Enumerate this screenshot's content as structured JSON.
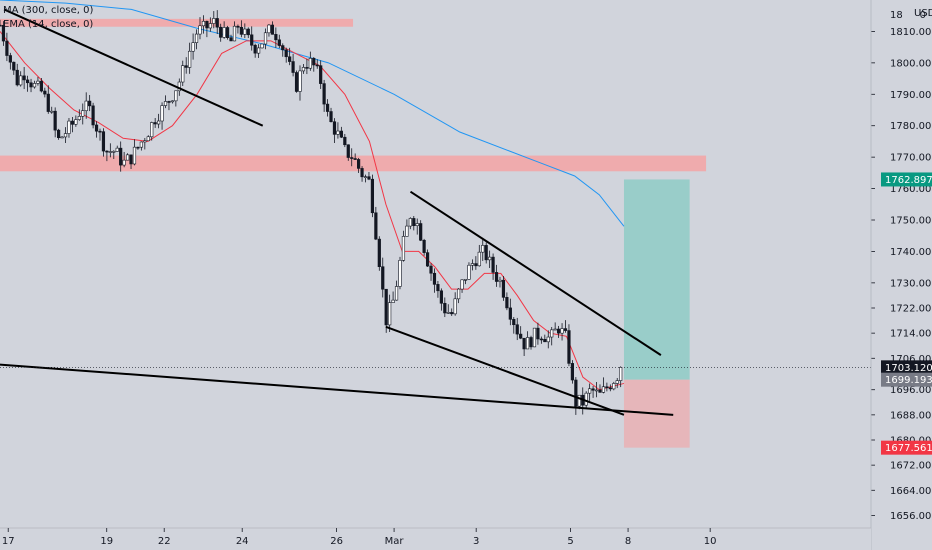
{
  "legend": {
    "ma_label": "MA (300, close, 0)",
    "ema_label": "EMA (14, close, 0)"
  },
  "currency": "USD",
  "colors": {
    "background": "#d1d4dc",
    "bull": "#ffffff",
    "bear": "#131722",
    "ema": "#f23645",
    "ma": "#2196f3",
    "zone": "#f4a3a5",
    "target": "#8fcbc5",
    "stop": "#e8b2b6",
    "axis_text": "#131722",
    "badge_green": "#089981",
    "badge_black": "#131722",
    "badge_grey": "#787b86",
    "badge_red": "#f23645"
  },
  "chart_data": {
    "type": "candlestick",
    "symbol_unit": "USD",
    "ylim": [
      1652,
      1820
    ],
    "xlim": [
      0,
      100
    ],
    "yticks": [
      1810,
      1800,
      1790,
      1780,
      1770,
      1760,
      1750,
      1740,
      1730,
      1722,
      1714,
      1706,
      1696,
      1688,
      1680,
      1672,
      1664,
      1656
    ],
    "ytick_labels": [
      "1810.000",
      "1800.000",
      "1790.000",
      "1780.000",
      "1770.000",
      "1760.000",
      "1750.000",
      "1740.000",
      "1730.000",
      "1722.000",
      "1714.000",
      "1706.000",
      "1696.000",
      "1688.000",
      "1680.000",
      "1672.000",
      "1664.000",
      "1656.000"
    ],
    "top_partial_labels": [
      "18",
      "0"
    ],
    "xticks": [
      {
        "label": "17",
        "x": 1
      },
      {
        "label": "19",
        "x": 13
      },
      {
        "label": "22",
        "x": 20
      },
      {
        "label": "24",
        "x": 29.5
      },
      {
        "label": "26",
        "x": 41
      },
      {
        "label": "Mar",
        "x": 48
      },
      {
        "label": "3",
        "x": 58
      },
      {
        "label": "5",
        "x": 69.5
      },
      {
        "label": "8",
        "x": 76.5
      },
      {
        "label": "10",
        "x": 86.5
      }
    ],
    "close_path": [
      [
        0,
        1812
      ],
      [
        1,
        1803
      ],
      [
        2,
        1794
      ],
      [
        3,
        1797
      ],
      [
        4,
        1793
      ],
      [
        5,
        1791
      ],
      [
        6,
        1786
      ],
      [
        7,
        1775
      ],
      [
        8,
        1778
      ],
      [
        9,
        1781
      ],
      [
        10,
        1786
      ],
      [
        11,
        1785
      ],
      [
        12,
        1778
      ],
      [
        13,
        1772
      ],
      [
        14,
        1772
      ],
      [
        15,
        1768
      ],
      [
        16,
        1770
      ],
      [
        17,
        1774
      ],
      [
        18,
        1778
      ],
      [
        19,
        1783
      ],
      [
        20,
        1786
      ],
      [
        21,
        1790
      ],
      [
        22,
        1795
      ],
      [
        23,
        1803
      ],
      [
        24,
        1810
      ],
      [
        25,
        1811
      ],
      [
        26,
        1813
      ],
      [
        27,
        1810
      ],
      [
        28,
        1806
      ],
      [
        29,
        1812
      ],
      [
        30,
        1808
      ],
      [
        31,
        1805
      ],
      [
        32,
        1807
      ],
      [
        33,
        1811
      ],
      [
        34,
        1808
      ],
      [
        35,
        1801
      ],
      [
        36,
        1792
      ],
      [
        37,
        1800
      ],
      [
        38,
        1800
      ],
      [
        39,
        1795
      ],
      [
        40,
        1782
      ],
      [
        41,
        1778
      ],
      [
        42,
        1772
      ],
      [
        43,
        1770
      ],
      [
        44,
        1765
      ],
      [
        45,
        1762
      ],
      [
        46,
        1742
      ],
      [
        47,
        1718
      ],
      [
        48,
        1725
      ],
      [
        49,
        1741
      ],
      [
        50,
        1752
      ],
      [
        51,
        1748
      ],
      [
        52,
        1738
      ],
      [
        53,
        1729
      ],
      [
        54,
        1722
      ],
      [
        55,
        1720
      ],
      [
        56,
        1728
      ],
      [
        57,
        1734
      ],
      [
        58,
        1738
      ],
      [
        59,
        1740
      ],
      [
        60,
        1734
      ],
      [
        61,
        1730
      ],
      [
        62,
        1722
      ],
      [
        63,
        1715
      ],
      [
        64,
        1710
      ],
      [
        65,
        1713
      ],
      [
        66,
        1714
      ],
      [
        67,
        1712
      ],
      [
        68,
        1716
      ],
      [
        69,
        1712
      ],
      [
        70,
        1692
      ],
      [
        71,
        1692
      ],
      [
        72,
        1696
      ],
      [
        73,
        1694
      ],
      [
        74,
        1697
      ],
      [
        75,
        1700
      ],
      [
        76,
        1703.12
      ]
    ],
    "ema14_path": [
      [
        0,
        1810
      ],
      [
        3,
        1800
      ],
      [
        6,
        1792
      ],
      [
        9,
        1785
      ],
      [
        12,
        1781
      ],
      [
        15,
        1776
      ],
      [
        18,
        1775
      ],
      [
        21,
        1780
      ],
      [
        24,
        1790
      ],
      [
        27,
        1803
      ],
      [
        30,
        1807
      ],
      [
        33,
        1807
      ],
      [
        36,
        1803
      ],
      [
        39,
        1799
      ],
      [
        42,
        1790
      ],
      [
        45,
        1775
      ],
      [
        47,
        1755
      ],
      [
        49,
        1740
      ],
      [
        51,
        1740
      ],
      [
        53,
        1735
      ],
      [
        55,
        1728
      ],
      [
        57,
        1728
      ],
      [
        59,
        1733
      ],
      [
        61,
        1733
      ],
      [
        63,
        1726
      ],
      [
        65,
        1718
      ],
      [
        67,
        1714
      ],
      [
        69,
        1713
      ],
      [
        71,
        1700
      ],
      [
        73,
        1696
      ],
      [
        76,
        1698
      ]
    ],
    "ma300_path": [
      [
        0,
        1820
      ],
      [
        8,
        1819
      ],
      [
        16,
        1817
      ],
      [
        24,
        1811
      ],
      [
        32,
        1806
      ],
      [
        40,
        1800
      ],
      [
        48,
        1790
      ],
      [
        56,
        1778
      ],
      [
        62,
        1772
      ],
      [
        66,
        1768
      ],
      [
        70,
        1764
      ],
      [
        73,
        1758
      ],
      [
        76,
        1748
      ]
    ],
    "resistance_zones": [
      {
        "x0": 0,
        "x1": 43,
        "y0": 1811.5,
        "y1": 1814
      },
      {
        "x0": 0,
        "x1": 86,
        "y0": 1765.5,
        "y1": 1770.5
      }
    ],
    "trendlines": [
      {
        "p1": [
          0.5,
          1817
        ],
        "p2": [
          32,
          1780
        ]
      },
      {
        "p1": [
          50,
          1759
        ],
        "p2": [
          80.5,
          1707
        ]
      },
      {
        "p1": [
          47,
          1716
        ],
        "p2": [
          76,
          1688
        ]
      },
      {
        "p1": [
          0,
          1704
        ],
        "p2": [
          82,
          1688
        ]
      }
    ],
    "position": {
      "x0": 76,
      "x1": 84,
      "target": 1762.897,
      "entry": 1699.193,
      "stop": 1677.561
    },
    "current_price": 1703.12,
    "price_badges": [
      {
        "label": "1762.897",
        "value": 1762.897,
        "role": "target"
      },
      {
        "label": "1703.120",
        "value": 1703.12,
        "role": "last"
      },
      {
        "label": "1699.193",
        "value": 1699.193,
        "role": "entry"
      },
      {
        "label": "1677.561",
        "value": 1677.561,
        "role": "stop"
      }
    ]
  }
}
